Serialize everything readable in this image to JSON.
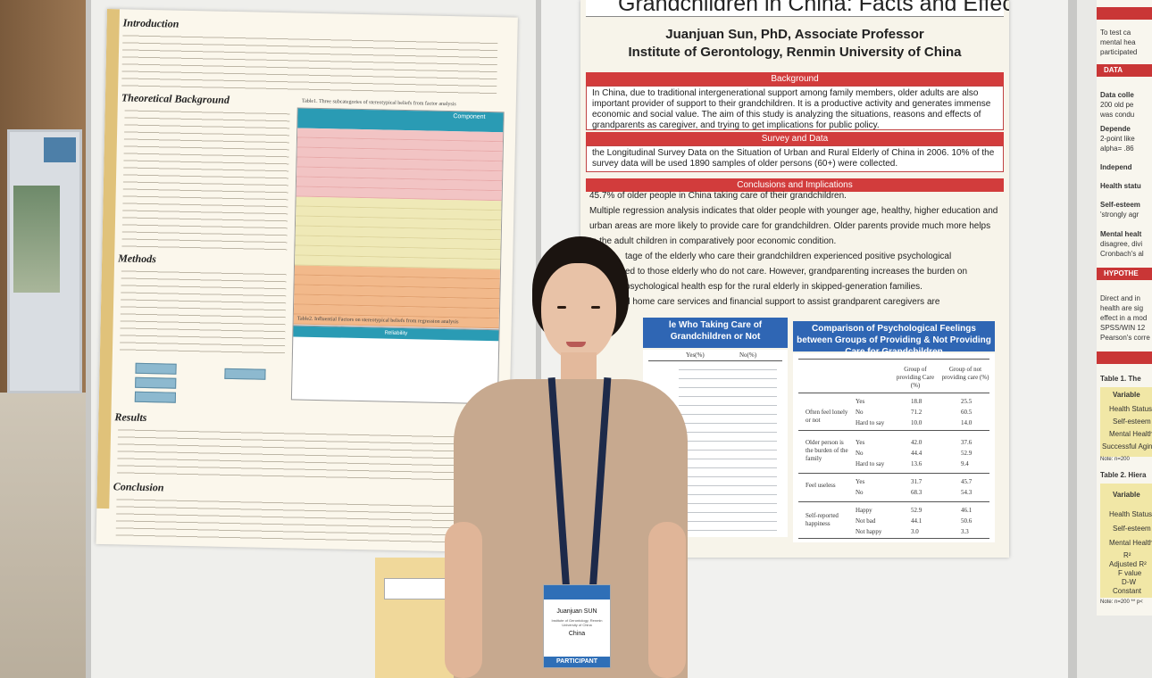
{
  "left_poster": {
    "headings": [
      "Introduction",
      "Theoretical Background",
      "Methods",
      "Results",
      "Conclusion"
    ],
    "table1_caption": "Table1. Three subcategories of stereotypical beliefs from factor analysis",
    "table2_caption": "Table2. Influential Factors on stereotypical beliefs from regression analysis",
    "table1_header": "Component",
    "table2_header": "Reliability"
  },
  "right_poster": {
    "title": "Grandchildren in China: Facts and Effects",
    "author": "Juanjuan Sun,  PhD, Associate Professor",
    "institute": "Institute of Gerontology, Renmin University of China",
    "sections": {
      "background": "Background",
      "survey": "Survey and Data",
      "conclusions": "Conclusions and Implications"
    },
    "background_text": "In China, due to traditional intergenerational support among family members, older adults are also important provider of support to their grandchildren. It is a productive activity and generates immense economic and social value. The aim of this study is analyzing the situations, reasons and effects of grandparents as caregiver, and trying to get implications for public policy.",
    "survey_text": "the Longitudinal Survey Data on the Situation of Urban and Rural Elderly of China in 2006. 10% of the survey data will be used 1890 samples of older persons (60+) were collected.",
    "bullets": [
      "45.7% of older people in China taking care of their grandchildren.",
      "Multiple regression analysis indicates that older people with younger age, healthy, higher education and",
      "urban areas are more likely to provide care for grandchildren. Older parents provide much more helps",
      "to the adult children in comparatively poor economic condition.",
      "tage of the elderly who care their grandchildren experienced positive psychological",
      "ed to those elderly who do not care. However, grandparenting increases the burden on",
      "psychological health esp for the rural elderly in skipped-generation families.",
      "d home care services and financial support to assist grandparent caregivers are"
    ],
    "table_left_title": "le Who Taking Care of  Grandchildren or Not",
    "table_left_cols": [
      "Yes(%)",
      "No(%)"
    ],
    "table_right_title": "Comparison of Psychological Feelings between Groups of Providing & Not Providing Care for Grandchildren",
    "table_right_cols": [
      "Group of providing Care (%)",
      "Group of not providing care (%)"
    ],
    "table_right_rows": [
      {
        "label": "Often feel lonely or not",
        "opts": [
          "Yes",
          "No",
          "Hard to say"
        ],
        "a": [
          "18.8",
          "71.2",
          "10.0"
        ],
        "b": [
          "25.5",
          "60.5",
          "14.0"
        ]
      },
      {
        "label": "Older person is the burden of the family",
        "opts": [
          "Yes",
          "No",
          "Hard to say"
        ],
        "a": [
          "42.0",
          "44.4",
          "13.6"
        ],
        "b": [
          "37.6",
          "52.9",
          "9.4"
        ]
      },
      {
        "label": "Feel useless",
        "opts": [
          "Yes",
          "No"
        ],
        "a": [
          "31.7",
          "68.3"
        ],
        "b": [
          "45.7",
          "54.3"
        ]
      },
      {
        "label": "Self-reported happiness",
        "opts": [
          "Happy",
          "Not bad",
          "Not happy"
        ],
        "a": [
          "52.9",
          "44.1",
          "3.0"
        ],
        "b": [
          "46.1",
          "50.6",
          "3.3"
        ]
      }
    ]
  },
  "far_right_poster": {
    "intro_lines": [
      "To test ca",
      "mental  hea",
      "participated"
    ],
    "heading_data": "DATA",
    "items": [
      "Data colle",
      "200 old pe",
      "was condu",
      "Depende",
      "2-point like",
      "alpha= .86",
      "Independ",
      "Health statu",
      "Self-esteem",
      "'strongly agr",
      "Mental healt",
      "disagree, divi",
      "Cronbach's al"
    ],
    "heading_hypo": "HYPOTHE",
    "hypo_lines": [
      "Direct and in",
      "health are sig",
      "effect in a mod",
      "SPSS/WIN  12",
      "Pearson's corre"
    ],
    "table1_title": "Table 1. The",
    "table1_rows": [
      "Variable",
      "Health Status",
      "Self-esteem",
      "Mental Health",
      "Successful Agin"
    ],
    "table1_note": "Note: n=200",
    "table2_title": "Table 2. Hiera",
    "table2_rows": [
      "Variable",
      "Health Status",
      "Self-esteem",
      "Mental Health",
      "R²",
      "Adjusted R²",
      "F value",
      "D-W",
      "Constant"
    ],
    "table2_note": "Note: n=200  ** p<"
  },
  "badge": {
    "name": "Juanjuan SUN",
    "organization": "Institute of Gerontology, Renmin University of China",
    "country": "China",
    "role": "PARTICIPANT"
  }
}
